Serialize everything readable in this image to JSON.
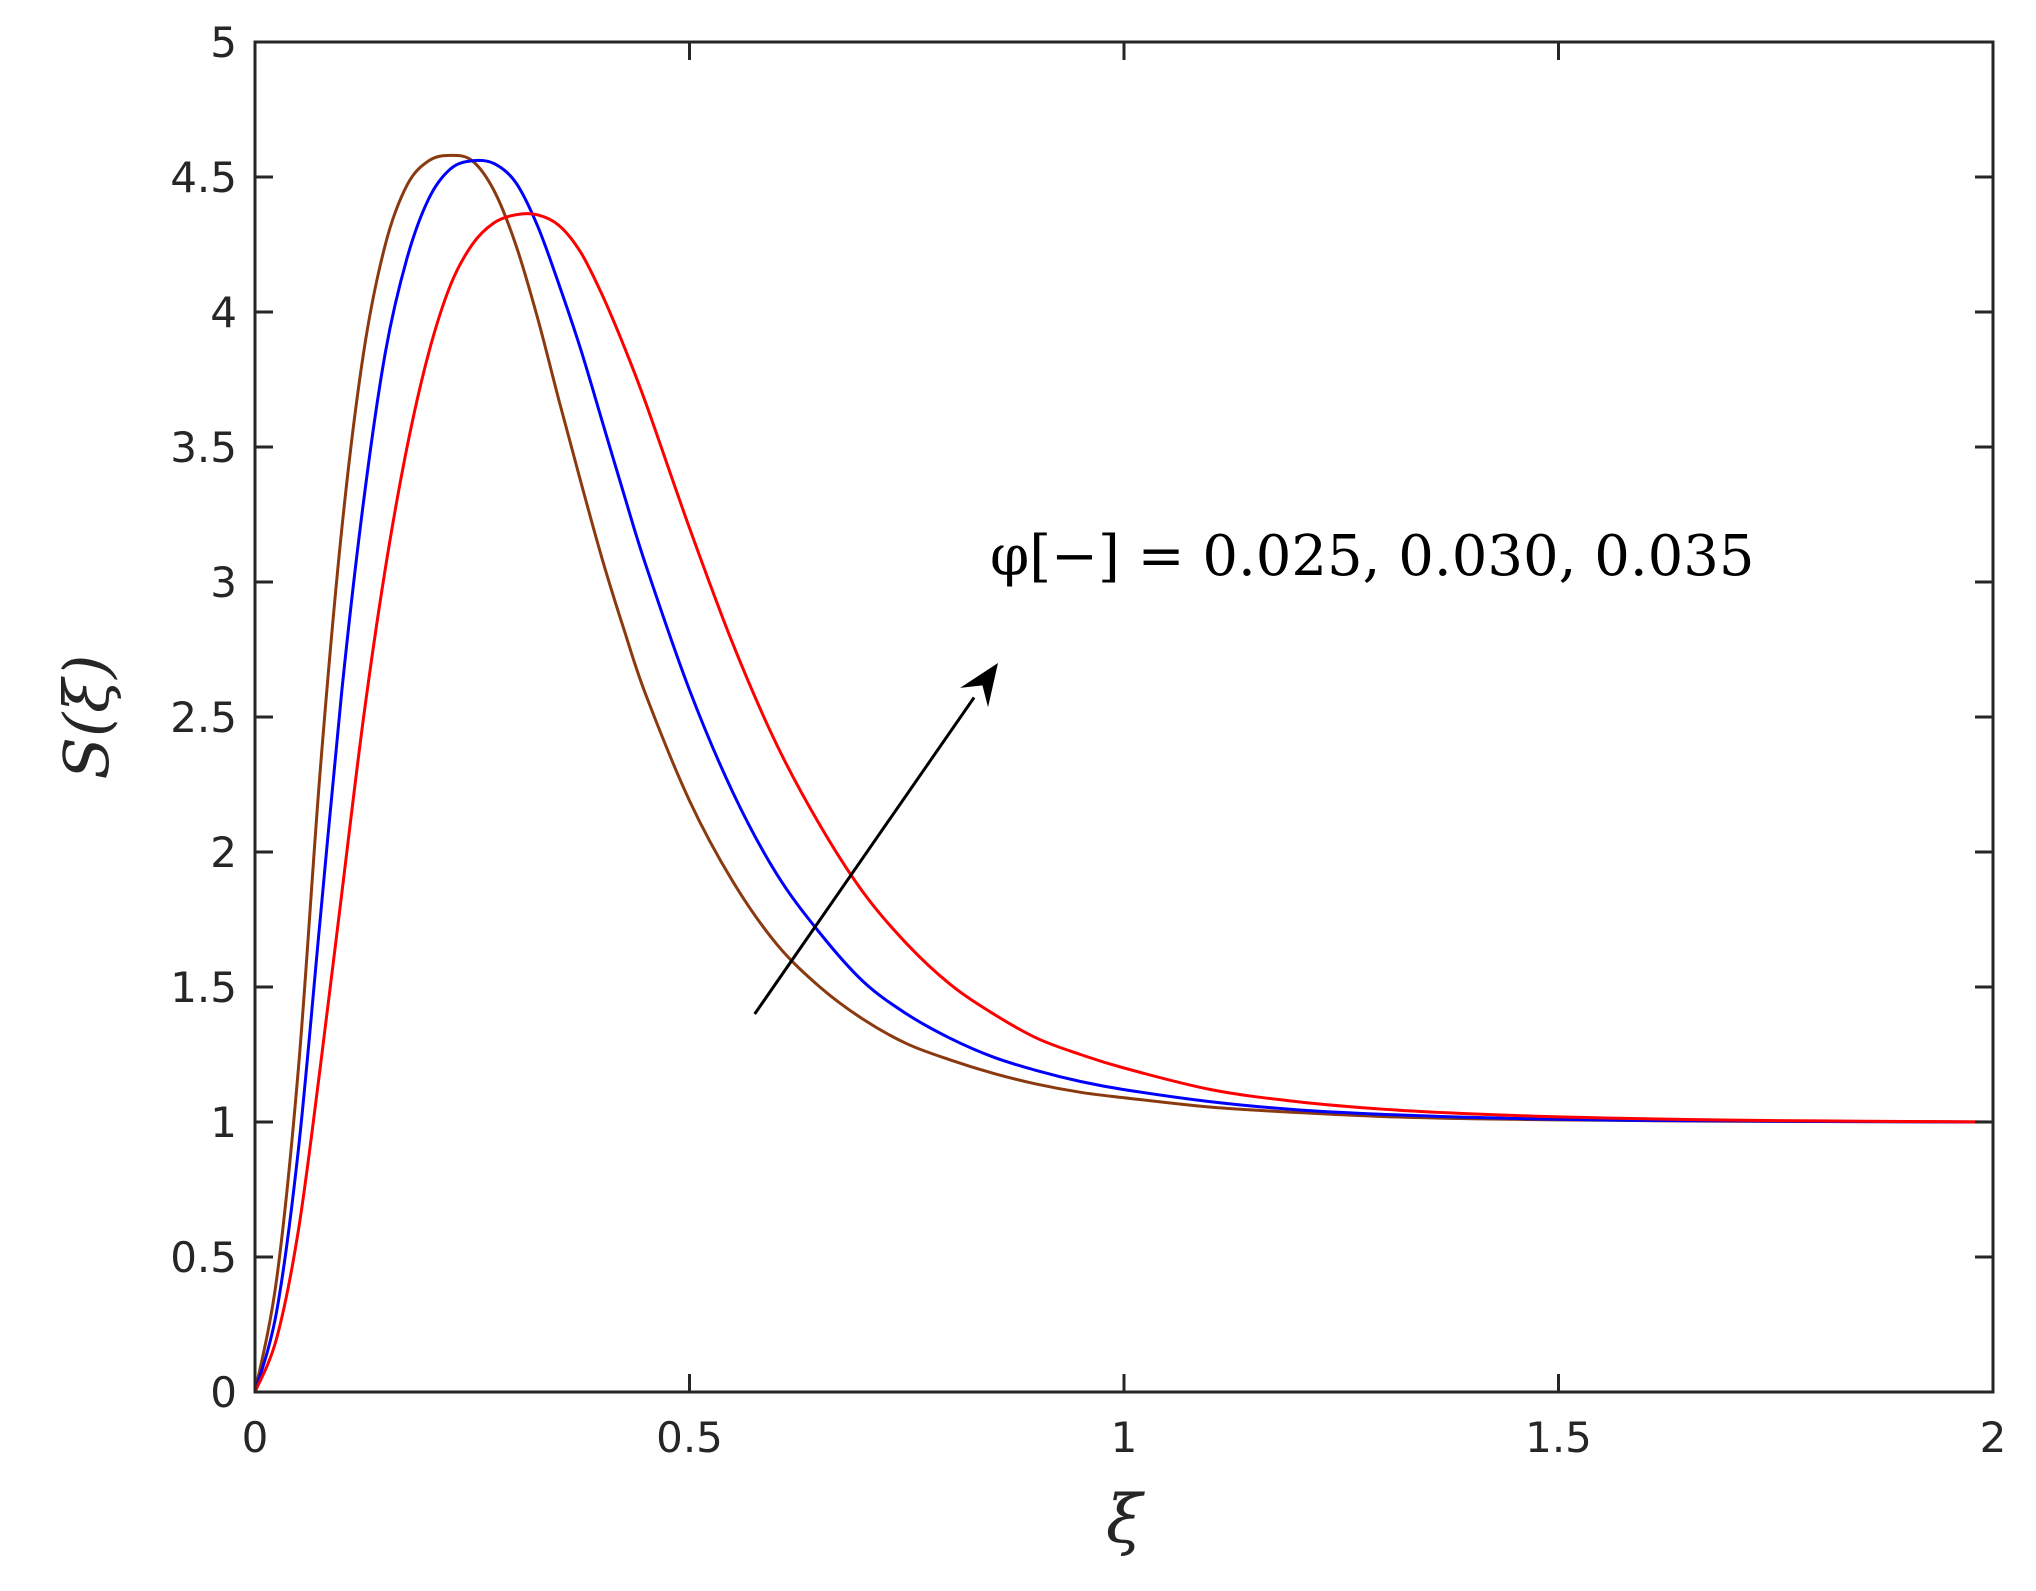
{
  "chart_data": {
    "type": "line",
    "xlabel": "ξ",
    "ylabel": "S(ξ)",
    "xlim": [
      0,
      2
    ],
    "ylim": [
      0,
      5
    ],
    "x_ticks": [
      0,
      0.5,
      1,
      1.5,
      2
    ],
    "x_tick_labels": [
      "0",
      "0.5",
      "1",
      "1.5",
      "2"
    ],
    "y_ticks": [
      0,
      0.5,
      1,
      1.5,
      2,
      2.5,
      3,
      3.5,
      4,
      4.5,
      5
    ],
    "y_tick_labels": [
      "0",
      "0.5",
      "1",
      "1.5",
      "2",
      "2.5",
      "3",
      "3.5",
      "4",
      "4.5",
      "5"
    ],
    "grid": false,
    "annotation": "φ[−] = 0.025, 0.030, 0.035",
    "arrow": {
      "from": [
        0.575,
        1.4
      ],
      "to": [
        0.855,
        2.7
      ]
    },
    "series": [
      {
        "color": "#8B3A0F",
        "x": [
          0,
          0.025,
          0.05,
          0.075,
          0.1,
          0.125,
          0.15,
          0.175,
          0.2,
          0.225,
          0.25,
          0.275,
          0.3,
          0.325,
          0.35,
          0.375,
          0.4,
          0.425,
          0.45,
          0.5,
          0.55,
          0.6,
          0.65,
          0.7,
          0.75,
          0.8,
          0.85,
          0.9,
          0.95,
          1.0,
          1.1,
          1.2,
          1.3,
          1.4,
          1.5,
          1.6,
          1.7,
          1.8,
          1.9,
          2.0
        ],
        "y": [
          0,
          0.42,
          1.2,
          2.3,
          3.2,
          3.85,
          4.25,
          4.47,
          4.56,
          4.58,
          4.56,
          4.45,
          4.25,
          3.98,
          3.67,
          3.37,
          3.08,
          2.82,
          2.58,
          2.19,
          1.89,
          1.66,
          1.5,
          1.38,
          1.29,
          1.23,
          1.18,
          1.14,
          1.11,
          1.09,
          1.055,
          1.035,
          1.02,
          1.012,
          1.008,
          1.005,
          1.003,
          1.002,
          1.001,
          1.0
        ]
      },
      {
        "color": "#0000FF",
        "x": [
          0,
          0.025,
          0.05,
          0.075,
          0.1,
          0.125,
          0.15,
          0.175,
          0.2,
          0.225,
          0.25,
          0.275,
          0.3,
          0.325,
          0.35,
          0.375,
          0.4,
          0.425,
          0.45,
          0.5,
          0.55,
          0.6,
          0.65,
          0.7,
          0.75,
          0.8,
          0.85,
          0.9,
          0.95,
          1.0,
          1.1,
          1.2,
          1.3,
          1.4,
          1.5,
          1.6,
          1.7,
          1.8,
          1.9,
          2.0
        ],
        "y": [
          0,
          0.3,
          0.9,
          1.75,
          2.6,
          3.3,
          3.85,
          4.2,
          4.42,
          4.53,
          4.56,
          4.55,
          4.48,
          4.32,
          4.1,
          3.86,
          3.59,
          3.32,
          3.06,
          2.6,
          2.22,
          1.92,
          1.7,
          1.52,
          1.4,
          1.31,
          1.24,
          1.19,
          1.15,
          1.12,
          1.075,
          1.045,
          1.028,
          1.017,
          1.01,
          1.006,
          1.004,
          1.002,
          1.001,
          1.0
        ]
      },
      {
        "color": "#FF0000",
        "x": [
          0,
          0.025,
          0.05,
          0.075,
          0.1,
          0.125,
          0.15,
          0.175,
          0.2,
          0.225,
          0.25,
          0.275,
          0.3,
          0.325,
          0.35,
          0.375,
          0.4,
          0.425,
          0.45,
          0.5,
          0.55,
          0.6,
          0.65,
          0.7,
          0.75,
          0.8,
          0.85,
          0.9,
          0.95,
          1.0,
          1.1,
          1.2,
          1.3,
          1.4,
          1.5,
          1.6,
          1.7,
          1.8,
          1.9,
          2.0
        ],
        "y": [
          0,
          0.2,
          0.6,
          1.2,
          1.85,
          2.5,
          3.05,
          3.5,
          3.85,
          4.1,
          4.25,
          4.33,
          4.36,
          4.36,
          4.32,
          4.22,
          4.06,
          3.87,
          3.66,
          3.2,
          2.77,
          2.4,
          2.1,
          1.85,
          1.66,
          1.51,
          1.4,
          1.31,
          1.25,
          1.2,
          1.12,
          1.075,
          1.047,
          1.03,
          1.019,
          1.012,
          1.007,
          1.004,
          1.002,
          1.0
        ]
      }
    ]
  }
}
